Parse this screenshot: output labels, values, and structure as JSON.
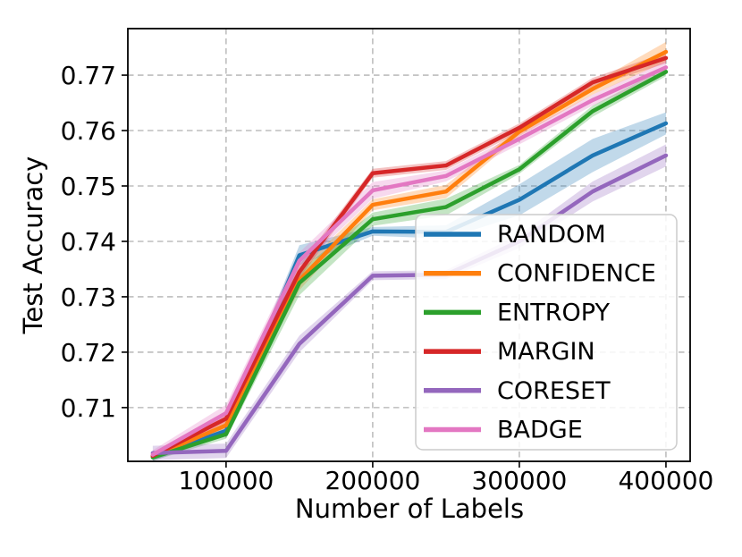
{
  "chart_data": {
    "type": "line",
    "title": "",
    "xlabel": "Number of Labels",
    "ylabel": "Test Accuracy",
    "x": [
      50000,
      100000,
      150000,
      200000,
      250000,
      300000,
      350000,
      400000
    ],
    "series": [
      {
        "name": "RANDOM",
        "color": "#1f77b4",
        "values": [
          0.7012,
          0.7058,
          0.7375,
          0.7418,
          0.7417,
          0.7475,
          0.7555,
          0.7613
        ],
        "band": [
          0.0008,
          0.0008,
          0.0018,
          0.0008,
          0.0012,
          0.0028,
          0.003,
          0.002
        ]
      },
      {
        "name": "CONFIDENCE",
        "color": "#ff7f0e",
        "values": [
          0.7012,
          0.7068,
          0.733,
          0.7466,
          0.749,
          0.7598,
          0.7675,
          0.7742
        ],
        "band": [
          0.0006,
          0.001,
          0.0018,
          0.001,
          0.0012,
          0.0008,
          0.001,
          0.0018
        ]
      },
      {
        "name": "ENTROPY",
        "color": "#2ca02c",
        "values": [
          0.701,
          0.7052,
          0.7325,
          0.744,
          0.7462,
          0.753,
          0.7635,
          0.7706
        ],
        "band": [
          0.0006,
          0.0008,
          0.0022,
          0.0012,
          0.0015,
          0.0008,
          0.001,
          0.0008
        ]
      },
      {
        "name": "MARGIN",
        "color": "#d62728",
        "values": [
          0.7013,
          0.708,
          0.7345,
          0.7523,
          0.7537,
          0.7605,
          0.7687,
          0.7731
        ],
        "band": [
          0.0006,
          0.001,
          0.0012,
          0.0008,
          0.0008,
          0.0008,
          0.0008,
          0.001
        ]
      },
      {
        "name": "CORESET",
        "color": "#9467bd",
        "values": [
          0.7018,
          0.7022,
          0.7215,
          0.7338,
          0.734,
          0.74,
          0.749,
          0.7555
        ],
        "band": [
          0.0013,
          0.0013,
          0.0015,
          0.0008,
          0.0008,
          0.0012,
          0.0018,
          0.002
        ]
      },
      {
        "name": "BADGE",
        "color": "#e377c2",
        "values": [
          0.7015,
          0.709,
          0.7365,
          0.7492,
          0.7518,
          0.7585,
          0.7655,
          0.7714
        ],
        "band": [
          0.0008,
          0.0015,
          0.0015,
          0.0015,
          0.001,
          0.001,
          0.001,
          0.0012
        ]
      }
    ],
    "xticks": [
      100000,
      200000,
      300000,
      400000
    ],
    "yticks": [
      0.71,
      0.72,
      0.73,
      0.74,
      0.75,
      0.76,
      0.77
    ],
    "xlim": [
      33000,
      416500
    ],
    "ylim": [
      0.7003,
      0.7784
    ],
    "grid": true,
    "legend": {
      "position": "center-right",
      "entries": [
        "RANDOM",
        "CONFIDENCE",
        "ENTROPY",
        "MARGIN",
        "CORESET",
        "BADGE"
      ]
    }
  },
  "style": {
    "grid_color": "#b0b0b0",
    "spine_color": "#000000",
    "tick_label_color": "#000000",
    "legend_border": "#cccccc",
    "legend_bg": "#ffffff"
  }
}
